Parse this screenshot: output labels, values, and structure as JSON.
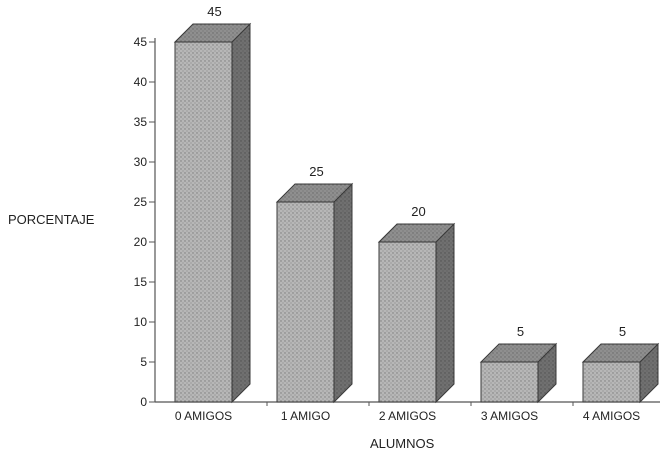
{
  "chart_data": {
    "type": "bar",
    "title": "",
    "xlabel": "ALUMNOS",
    "ylabel": "PORCENTAJE",
    "categories": [
      "0 AMIGOS",
      "1 AMIGO",
      "2 AMIGOS",
      "3 AMIGOS",
      "4 AMIGOS"
    ],
    "values": [
      45,
      25,
      20,
      5,
      5
    ],
    "data_labels": [
      "45",
      "25",
      "20",
      "5",
      "5"
    ],
    "ylim": [
      0,
      45
    ],
    "yticks": [
      0,
      5,
      10,
      15,
      20,
      25,
      30,
      35,
      40,
      45
    ],
    "ytick_labels": [
      "0",
      "5",
      "10",
      "15",
      "20",
      "25",
      "30",
      "35",
      "40",
      "45"
    ],
    "grid": false,
    "style": "3d",
    "colors": {
      "bar_front": "#bdbdbd",
      "bar_side": "#6f6f6f",
      "bar_top": "#8e8e8e",
      "axis": "#555555",
      "text": "#222222"
    }
  }
}
